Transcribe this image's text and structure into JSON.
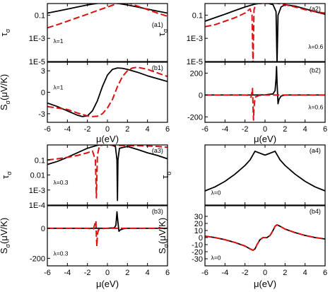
{
  "chart_data": [
    {
      "type": "line",
      "label": "(a1)",
      "lambda_label": "λ=1",
      "xlabel": "",
      "ylabel": "τ_σ",
      "yscale": "log",
      "ylim": [
        1e-05,
        1
      ],
      "xlim": [
        -6,
        6
      ],
      "yticks": [
        1e-05,
        0.001,
        0.1
      ],
      "ytick_labels": [
        "1E-5",
        "1E-3",
        "0.1"
      ],
      "x_ticks": [
        -6,
        -4,
        -2,
        0,
        2,
        4,
        6
      ],
      "show_xtick_labels": false,
      "series": [
        {
          "color": "#000000",
          "dash": "solid",
          "x": [
            -6,
            -5,
            -4,
            -3,
            -2,
            -1,
            0,
            1,
            2,
            3,
            4,
            5,
            6
          ],
          "y": [
            0.15,
            0.22,
            0.33,
            0.5,
            0.75,
            1.05,
            1.3,
            1.05,
            0.75,
            0.5,
            0.33,
            0.22,
            0.15
          ]
        },
        {
          "color": "#dd1111",
          "dash": "dashed",
          "x": [
            -6,
            -5,
            -4,
            -3,
            -2,
            -1,
            0,
            1,
            2,
            3,
            4,
            5,
            6
          ],
          "y": [
            0.008,
            0.015,
            0.03,
            0.06,
            0.12,
            0.25,
            0.5,
            1.0,
            1.2,
            0.6,
            0.3,
            0.15,
            0.08
          ]
        }
      ]
    },
    {
      "type": "line",
      "label": "(b1)",
      "lambda_label": "λ=1",
      "xlabel": "",
      "ylabel": "S_σ(μV/K)",
      "yscale": "linear",
      "ylim": [
        -4.2,
        4.2
      ],
      "xlim": [
        -6,
        6
      ],
      "yticks": [
        -3,
        0,
        3
      ],
      "ytick_labels": [
        "-3",
        "0",
        "3"
      ],
      "x_ticks": [
        -6,
        -4,
        -2,
        0,
        2,
        4,
        6
      ],
      "show_xtick_labels": false,
      "series": [
        {
          "color": "#000000",
          "dash": "solid",
          "x": [
            -6,
            -5,
            -4,
            -3,
            -2.5,
            -2,
            -1.5,
            -1,
            -0.5,
            0,
            0.5,
            1,
            1.5,
            2,
            3,
            4,
            5,
            6
          ],
          "y": [
            -1.5,
            -2.0,
            -2.6,
            -3.2,
            -3.4,
            -3.3,
            -2.6,
            -1.2,
            0.8,
            2.4,
            3.2,
            3.4,
            3.35,
            3.2,
            2.8,
            2.3,
            1.9,
            1.5
          ]
        },
        {
          "color": "#dd1111",
          "dash": "dashed",
          "x": [
            -6,
            -5,
            -4,
            -3,
            -2,
            -1.5,
            -1,
            -0.5,
            0,
            0.5,
            1,
            1.5,
            2,
            2.5,
            3,
            4,
            5,
            6
          ],
          "y": [
            -2.0,
            -2.2,
            -2.4,
            -2.9,
            -3.3,
            -3.4,
            -3.35,
            -3.0,
            -2.2,
            -1.0,
            0.8,
            2.2,
            3.0,
            3.4,
            3.5,
            3.2,
            2.7,
            2.2
          ]
        }
      ]
    },
    {
      "type": "line",
      "label": "(a2)",
      "lambda_label": "λ=0.6",
      "xlabel": "",
      "ylabel": "τ_σ",
      "yscale": "log",
      "ylim": [
        1e-05,
        1
      ],
      "xlim": [
        -6,
        6
      ],
      "yticks": [
        1e-05,
        0.001,
        0.1
      ],
      "ytick_labels": [
        "1E-5",
        "1E-3",
        "0.1"
      ],
      "x_ticks": [
        -6,
        -4,
        -2,
        0,
        2,
        4,
        6
      ],
      "show_xtick_labels": false,
      "series": [
        {
          "color": "#000000",
          "dash": "solid",
          "x": [
            -6,
            -5,
            -4,
            -3,
            -2,
            -1,
            0,
            0.8,
            1.1,
            1.2,
            1.3,
            1.6,
            2,
            3,
            4,
            5,
            6
          ],
          "y": [
            0.03,
            0.06,
            0.12,
            0.25,
            0.5,
            0.9,
            1.2,
            0.8,
            0.2,
            3e-06,
            0.1,
            0.5,
            0.8,
            0.6,
            0.35,
            0.2,
            0.12
          ]
        },
        {
          "color": "#dd1111",
          "dash": "dashed",
          "x": [
            -6,
            -5,
            -4,
            -3,
            -2,
            -1.5,
            -1.3,
            -1.2,
            -1.1,
            -0.9,
            -0.5,
            0,
            1,
            2,
            3,
            4,
            5,
            6
          ],
          "y": [
            0.01,
            0.015,
            0.03,
            0.06,
            0.15,
            0.35,
            0.1,
            3e-06,
            0.3,
            1.0,
            1.0,
            1.0,
            1.1,
            0.8,
            0.5,
            0.3,
            0.2,
            0.15
          ]
        }
      ]
    },
    {
      "type": "line",
      "label": "(b2)",
      "lambda_label": "λ=0.6",
      "xlabel": "",
      "ylabel": "",
      "yscale": "linear",
      "ylim": [
        -250,
        300
      ],
      "xlim": [
        -6,
        6
      ],
      "yticks": [
        -200,
        0,
        200
      ],
      "ytick_labels": [
        "-200",
        "0",
        "200"
      ],
      "x_ticks": [
        -6,
        -4,
        -2,
        0,
        2,
        4,
        6
      ],
      "show_xtick_labels": false,
      "series": [
        {
          "color": "#000000",
          "dash": "solid",
          "x": [
            -6,
            -2,
            -1,
            0,
            0.8,
            1.0,
            1.1,
            1.15,
            1.2,
            1.3,
            1.4,
            1.6,
            2,
            6
          ],
          "y": [
            0,
            0,
            0,
            2,
            10,
            40,
            150,
            260,
            120,
            -80,
            -40,
            -10,
            0,
            0
          ]
        },
        {
          "color": "#dd1111",
          "dash": "dashed",
          "x": [
            -6,
            -2,
            -1.6,
            -1.4,
            -1.3,
            -1.25,
            -1.2,
            -1.15,
            -1.1,
            -1.0,
            -0.6,
            0,
            6
          ],
          "y": [
            0,
            0,
            -5,
            -20,
            30,
            60,
            -100,
            -230,
            -120,
            -20,
            -5,
            0,
            0
          ]
        }
      ]
    },
    {
      "type": "line",
      "label": "(a3)",
      "lambda_label": "λ=0.3",
      "xlabel": "",
      "ylabel": "τ_σ",
      "yscale": "log",
      "ylim": [
        0.0001,
        1
      ],
      "xlim": [
        -6,
        6
      ],
      "yticks": [
        0.0001,
        0.001,
        0.01,
        0.1
      ],
      "ytick_labels": [
        "1E-4",
        "1E-3",
        "0.01",
        "0.1"
      ],
      "x_ticks": [
        -6,
        -4,
        -2,
        0,
        2,
        4,
        6
      ],
      "show_xtick_labels": false,
      "series": [
        {
          "color": "#000000",
          "dash": "solid",
          "x": [
            -6,
            -5,
            -4,
            -3,
            -2,
            -1,
            0,
            0.8,
            0.95,
            1.0,
            1.05,
            1.2,
            2,
            3,
            4,
            5,
            6
          ],
          "y": [
            0.05,
            0.08,
            0.15,
            0.3,
            0.6,
            0.95,
            1.2,
            0.8,
            0.1,
            0.0002,
            0.1,
            0.6,
            0.8,
            0.5,
            0.3,
            0.2,
            0.12
          ]
        },
        {
          "color": "#dd1111",
          "dash": "dashed",
          "x": [
            -6,
            -5,
            -4,
            -3,
            -2,
            -1.5,
            -1.2,
            -1.1,
            -1.0,
            -0.8,
            -0.4,
            0,
            1,
            2,
            3,
            4,
            5,
            6
          ],
          "y": [
            0.1,
            0.12,
            0.15,
            0.2,
            0.3,
            0.4,
            0.1,
            0.0003,
            0.2,
            0.9,
            1.0,
            1.0,
            0.95,
            0.9,
            0.9,
            0.85,
            0.8,
            0.7
          ]
        }
      ]
    },
    {
      "type": "line",
      "label": "(b3)",
      "lambda_label": "λ=0.3",
      "xlabel": "μ(eV)",
      "ylabel": "S_σ(μV/K)",
      "yscale": "linear",
      "ylim": [
        -250,
        150
      ],
      "xlim": [
        -6,
        6
      ],
      "yticks": [
        -200,
        0
      ],
      "ytick_labels": [
        "-200",
        "0"
      ],
      "x_ticks": [
        -6,
        -4,
        -2,
        0,
        2,
        4,
        6
      ],
      "show_xtick_labels": true,
      "xtick_labels": [
        "-6",
        "-4",
        "-2",
        "0",
        "2",
        "4",
        "6"
      ],
      "series": [
        {
          "color": "#000000",
          "dash": "solid",
          "x": [
            -6,
            -1,
            0,
            0.7,
            0.85,
            0.95,
            1.05,
            1.15,
            1.3,
            1.6,
            2,
            6
          ],
          "y": [
            0,
            0,
            0,
            3,
            20,
            110,
            40,
            -20,
            -10,
            -3,
            0,
            0
          ]
        },
        {
          "color": "#dd1111",
          "dash": "dashed",
          "x": [
            -6,
            -2,
            -1.4,
            -1.25,
            -1.15,
            -1.1,
            -1.05,
            -1.0,
            -0.9,
            -0.5,
            0,
            6
          ],
          "y": [
            0,
            0,
            -5,
            30,
            50,
            -60,
            -120,
            -40,
            -10,
            -2,
            0,
            0
          ]
        }
      ]
    },
    {
      "type": "line",
      "label": "(a4)",
      "lambda_label": "λ=0",
      "xlabel": "",
      "ylabel": "τ_σ",
      "yscale": "log",
      "ylim": [
        0.001,
        2
      ],
      "xlim": [
        -6,
        6
      ],
      "yticks": [],
      "ytick_labels": [],
      "x_ticks": [
        -6,
        -4,
        -2,
        0,
        2,
        4,
        6
      ],
      "show_xtick_labels": false,
      "series": [
        {
          "color": "#000000",
          "dash": "solid",
          "x": [
            -6,
            -5,
            -4,
            -3,
            -2,
            -1.5,
            -1,
            -0.5,
            0,
            0.5,
            1,
            1.5,
            2,
            3,
            4,
            5,
            6
          ],
          "y": [
            0.006,
            0.01,
            0.02,
            0.05,
            0.15,
            0.3,
            0.9,
            0.7,
            0.55,
            0.7,
            0.9,
            0.3,
            0.15,
            0.05,
            0.02,
            0.01,
            0.006
          ]
        }
      ]
    },
    {
      "type": "line",
      "label": "(b4)",
      "lambda_label": "λ=0",
      "xlabel": "μ(eV)",
      "ylabel": "S_σ(μV/K)",
      "yscale": "linear",
      "ylim": [
        -40,
        45
      ],
      "xlim": [
        -6,
        6
      ],
      "yticks": [
        -30,
        -20,
        -10,
        0,
        10,
        20,
        30
      ],
      "ytick_labels": [
        "-30",
        "-20",
        "-10",
        "0",
        "10",
        "20",
        "30"
      ],
      "x_ticks": [
        -6,
        -4,
        -2,
        0,
        2,
        4,
        6
      ],
      "show_xtick_labels": true,
      "xtick_labels": [
        "-6",
        "-4",
        "-2",
        "0",
        "2",
        "4",
        "6"
      ],
      "series": [
        {
          "color": "#000000",
          "dash": "solid",
          "x": [
            -6,
            -5,
            -4,
            -3,
            -2,
            -1.5,
            -1.2,
            -1,
            -0.8,
            -0.5,
            -0.2,
            0,
            0.2,
            0.5,
            0.8,
            1,
            1.2,
            1.5,
            2,
            3,
            4,
            5,
            6
          ],
          "y": [
            2,
            0,
            -3,
            -7,
            -12,
            -16,
            -18,
            -16,
            -10,
            -3,
            0,
            0,
            0,
            3,
            10,
            16,
            18,
            16,
            12,
            7,
            3,
            0,
            -2
          ]
        },
        {
          "color": "#dd1111",
          "dash": "dashed",
          "x": [
            -6,
            -5,
            -4,
            -3,
            -2,
            -1.5,
            -1.2,
            -1,
            -0.8,
            -0.5,
            -0.2,
            0,
            0.2,
            0.5,
            0.8,
            1,
            1.2,
            1.5,
            2,
            3,
            4,
            5,
            6
          ],
          "y": [
            2,
            0,
            -3,
            -7,
            -12,
            -16,
            -18,
            -16,
            -10,
            -3,
            0,
            0,
            0,
            3,
            10,
            16,
            18,
            16,
            12,
            7,
            3,
            0,
            -2
          ]
        }
      ]
    }
  ]
}
